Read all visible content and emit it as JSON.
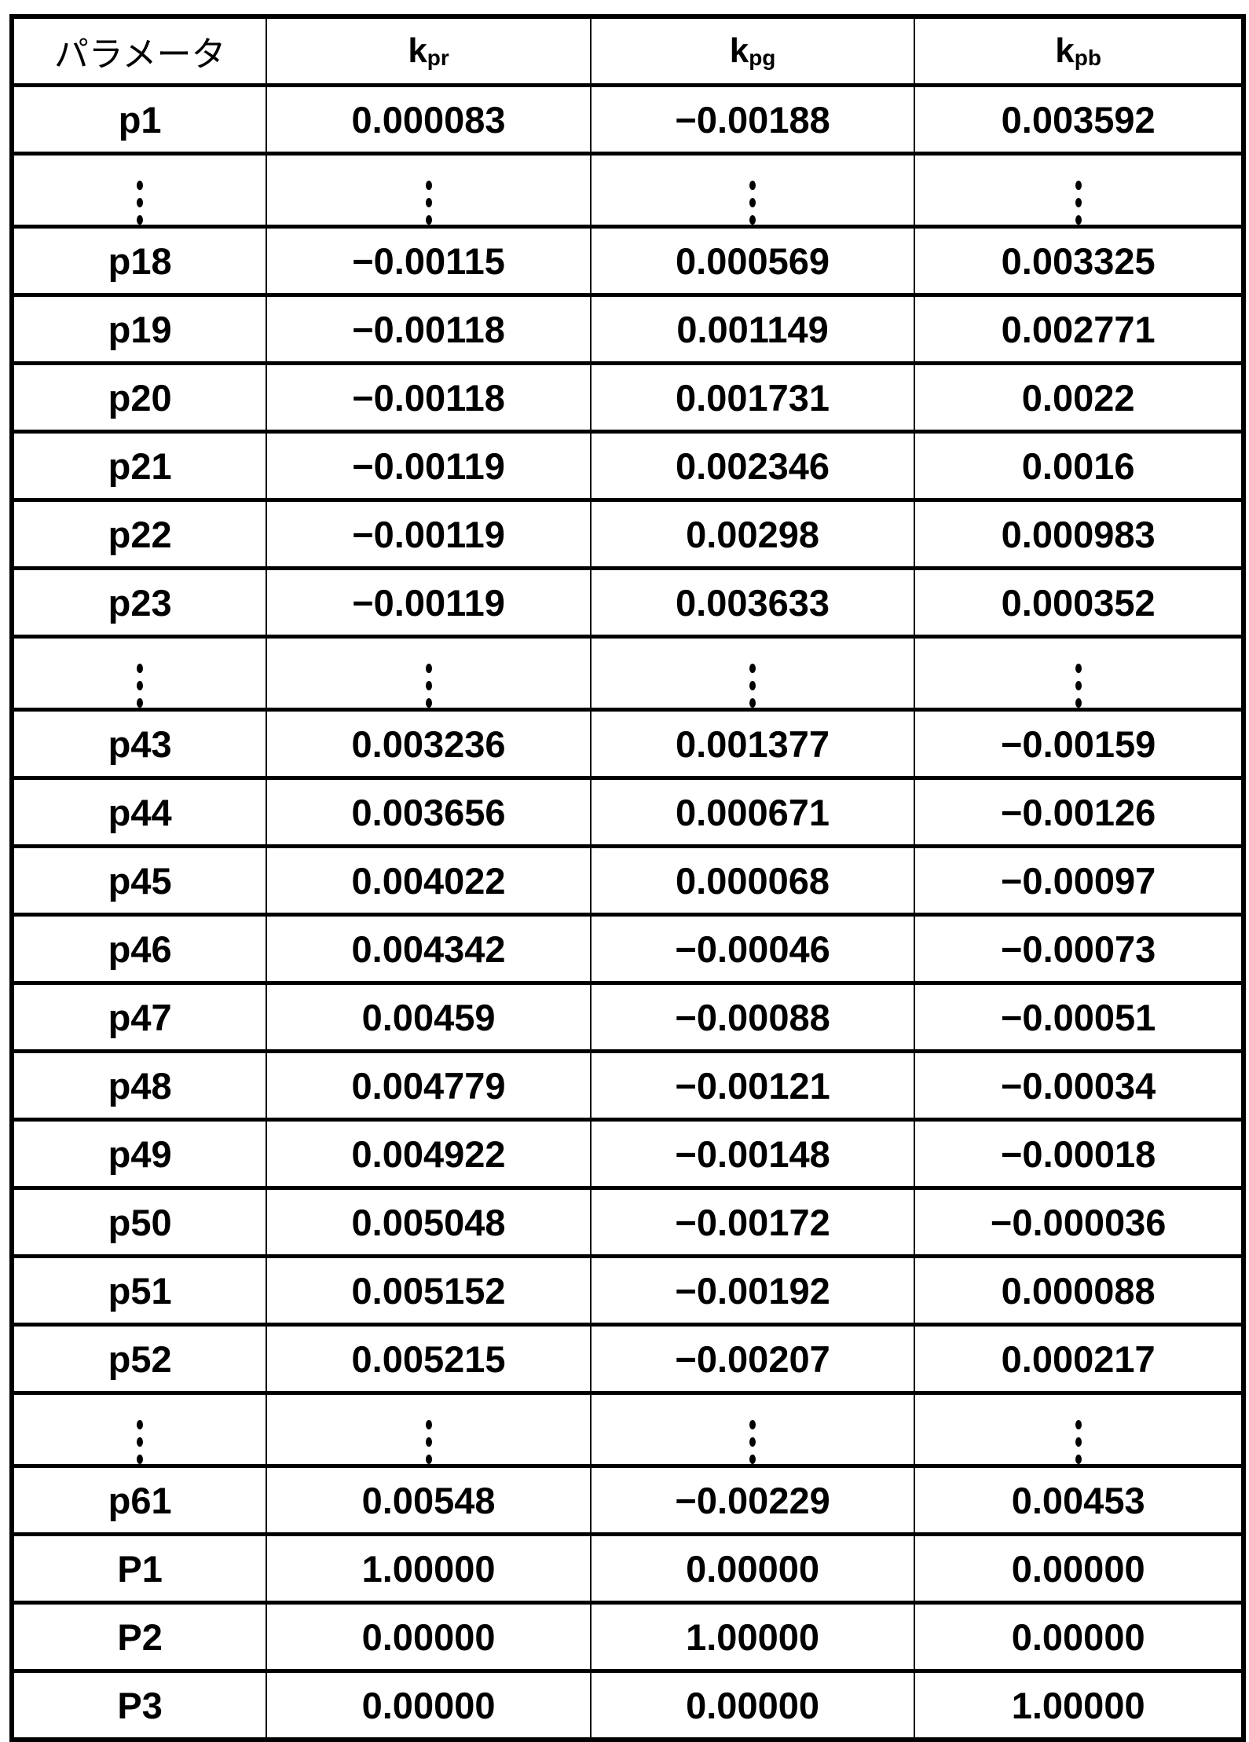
{
  "table": {
    "header": {
      "param": "パラメータ",
      "cols": [
        {
          "base": "k",
          "sub": "pr"
        },
        {
          "base": "k",
          "sub": "pg"
        },
        {
          "base": "k",
          "sub": "pb"
        }
      ]
    },
    "rows": [
      [
        "p1",
        "0.000083",
        "−0.00188",
        "0.003592"
      ],
      [
        "⋮",
        "⋮",
        "⋮",
        "⋮"
      ],
      [
        "p18",
        "−0.00115",
        "0.000569",
        "0.003325"
      ],
      [
        "p19",
        "−0.00118",
        "0.001149",
        "0.002771"
      ],
      [
        "p20",
        "−0.00118",
        "0.001731",
        "0.0022"
      ],
      [
        "p21",
        "−0.00119",
        "0.002346",
        "0.0016"
      ],
      [
        "p22",
        "−0.00119",
        "0.00298",
        "0.000983"
      ],
      [
        "p23",
        "−0.00119",
        "0.003633",
        "0.000352"
      ],
      [
        "⋮",
        "⋮",
        "⋮",
        "⋮"
      ],
      [
        "p43",
        "0.003236",
        "0.001377",
        "−0.00159"
      ],
      [
        "p44",
        "0.003656",
        "0.000671",
        "−0.00126"
      ],
      [
        "p45",
        "0.004022",
        "0.000068",
        "−0.00097"
      ],
      [
        "p46",
        "0.004342",
        "−0.00046",
        "−0.00073"
      ],
      [
        "p47",
        "0.00459",
        "−0.00088",
        "−0.00051"
      ],
      [
        "p48",
        "0.004779",
        "−0.00121",
        "−0.00034"
      ],
      [
        "p49",
        "0.004922",
        "−0.00148",
        "−0.00018"
      ],
      [
        "p50",
        "0.005048",
        "−0.00172",
        "−0.000036"
      ],
      [
        "p51",
        "0.005152",
        "−0.00192",
        "0.000088"
      ],
      [
        "p52",
        "0.005215",
        "−0.00207",
        "0.000217"
      ],
      [
        "⋮",
        "⋮",
        "⋮",
        "⋮"
      ],
      [
        "p61",
        "0.00548",
        "−0.00229",
        "0.00453"
      ],
      [
        "P1",
        "1.00000",
        "0.00000",
        "0.00000"
      ],
      [
        "P2",
        "0.00000",
        "1.00000",
        "0.00000"
      ],
      [
        "P3",
        "0.00000",
        "0.00000",
        "1.00000"
      ]
    ]
  }
}
